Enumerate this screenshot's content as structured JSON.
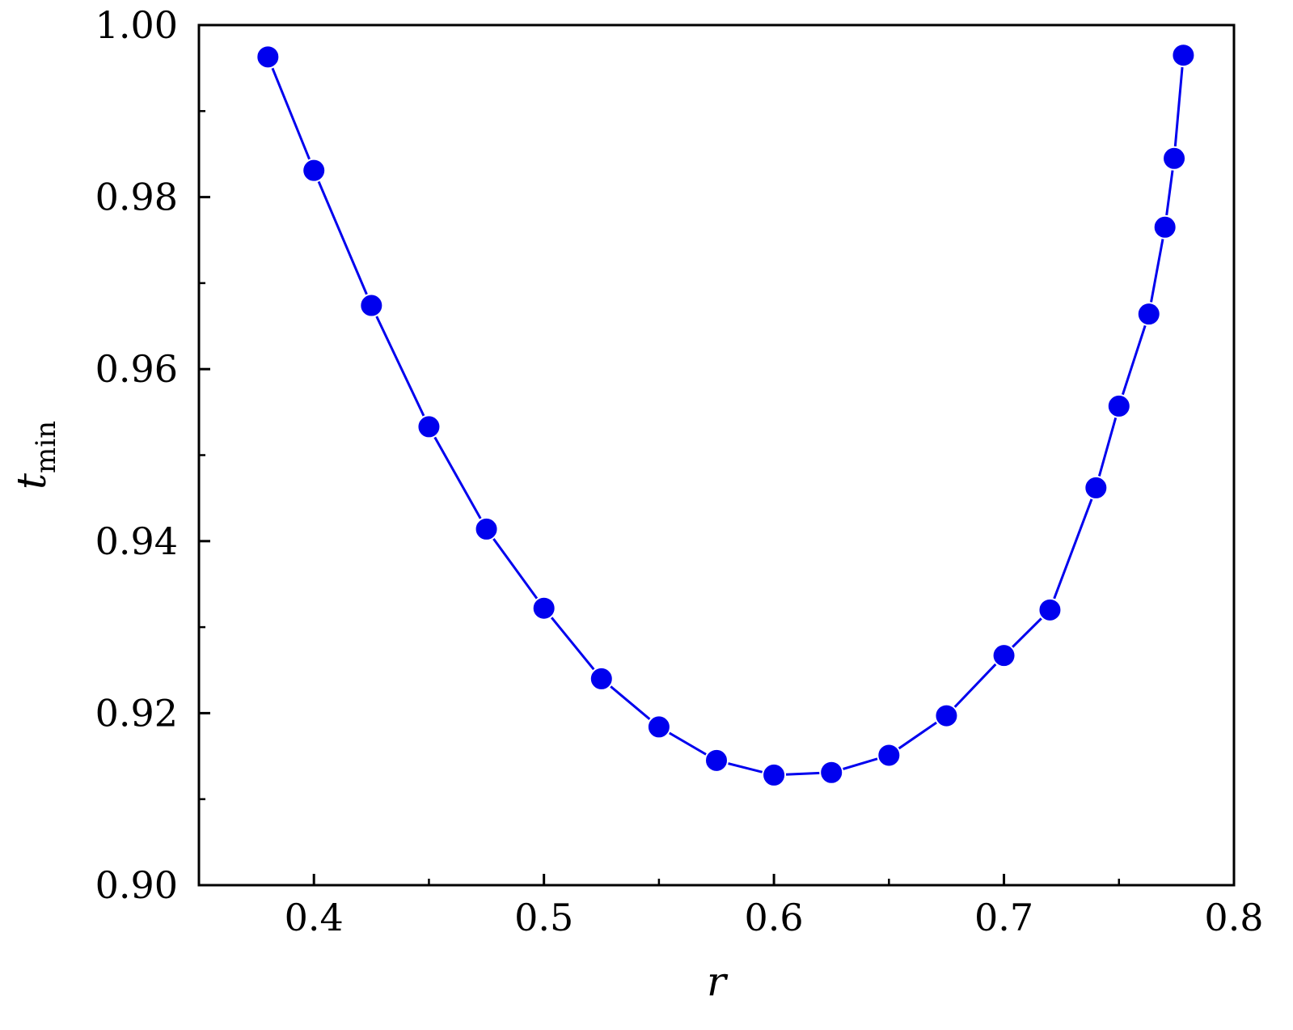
{
  "chart_data": {
    "type": "line",
    "xlabel": "r",
    "ylabel": "t",
    "ylabel_sub": "min",
    "xlim": [
      0.35,
      0.8
    ],
    "ylim": [
      0.9,
      1.0
    ],
    "x_ticks_major": [
      0.4,
      0.5,
      0.6,
      0.7,
      0.8
    ],
    "x_tick_labels": [
      "0.4",
      "0.5",
      "0.6",
      "0.7",
      "0.8"
    ],
    "x_ticks_minor": [
      0.45,
      0.55,
      0.65,
      0.75
    ],
    "y_ticks_major": [
      0.9,
      0.92,
      0.94,
      0.96,
      0.98,
      1.0
    ],
    "y_tick_labels": [
      "0.90",
      "0.92",
      "0.94",
      "0.96",
      "0.98",
      "1.00"
    ],
    "y_ticks_minor": [
      0.91,
      0.93,
      0.95,
      0.97,
      0.99
    ],
    "grid": false,
    "series": [
      {
        "color": "#0000ee",
        "marker": "circle",
        "x": [
          0.38,
          0.4,
          0.425,
          0.45,
          0.475,
          0.5,
          0.525,
          0.55,
          0.575,
          0.6,
          0.625,
          0.65,
          0.675,
          0.7,
          0.72,
          0.74,
          0.75,
          0.763,
          0.77,
          0.774,
          0.778
        ],
        "y": [
          0.9963,
          0.9831,
          0.9674,
          0.9533,
          0.9414,
          0.9322,
          0.924,
          0.9184,
          0.9145,
          0.9128,
          0.9131,
          0.9151,
          0.9197,
          0.9267,
          0.932,
          0.9462,
          0.9557,
          0.9664,
          0.9765,
          0.9845,
          0.9965
        ]
      }
    ]
  }
}
